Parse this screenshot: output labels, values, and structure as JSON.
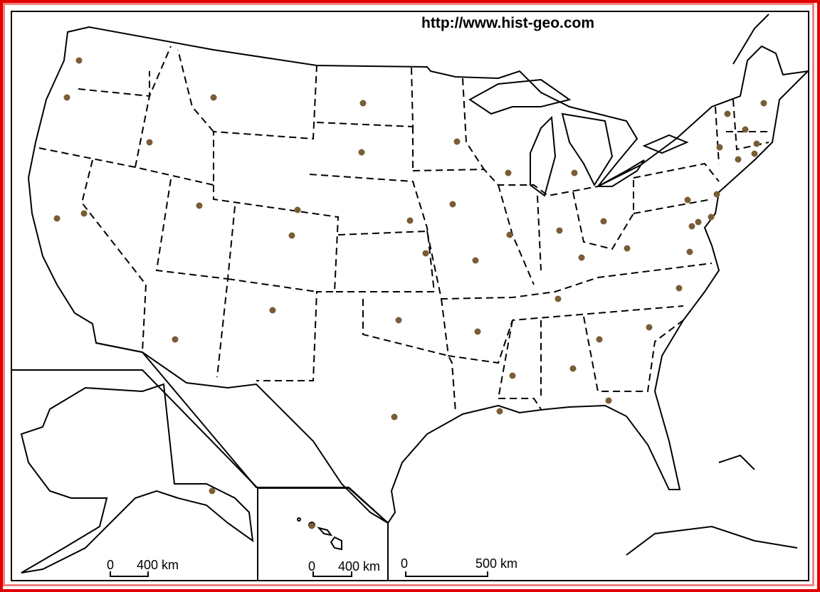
{
  "map": {
    "source_text": "http://www.hist-geo.com",
    "colors": {
      "frame": "#e00000",
      "frame_inner": "#f08080",
      "capital_dot": "#7a5c36",
      "outline": "#000000"
    },
    "markers": "state-capitals",
    "insets": {
      "alaska": {
        "scale_zero": "0",
        "scale_label": "400 km"
      },
      "hawaii": {
        "scale_zero": "0",
        "scale_label": "400 km"
      }
    },
    "main_scale": {
      "scale_zero": "0",
      "scale_label": "500 km"
    }
  }
}
